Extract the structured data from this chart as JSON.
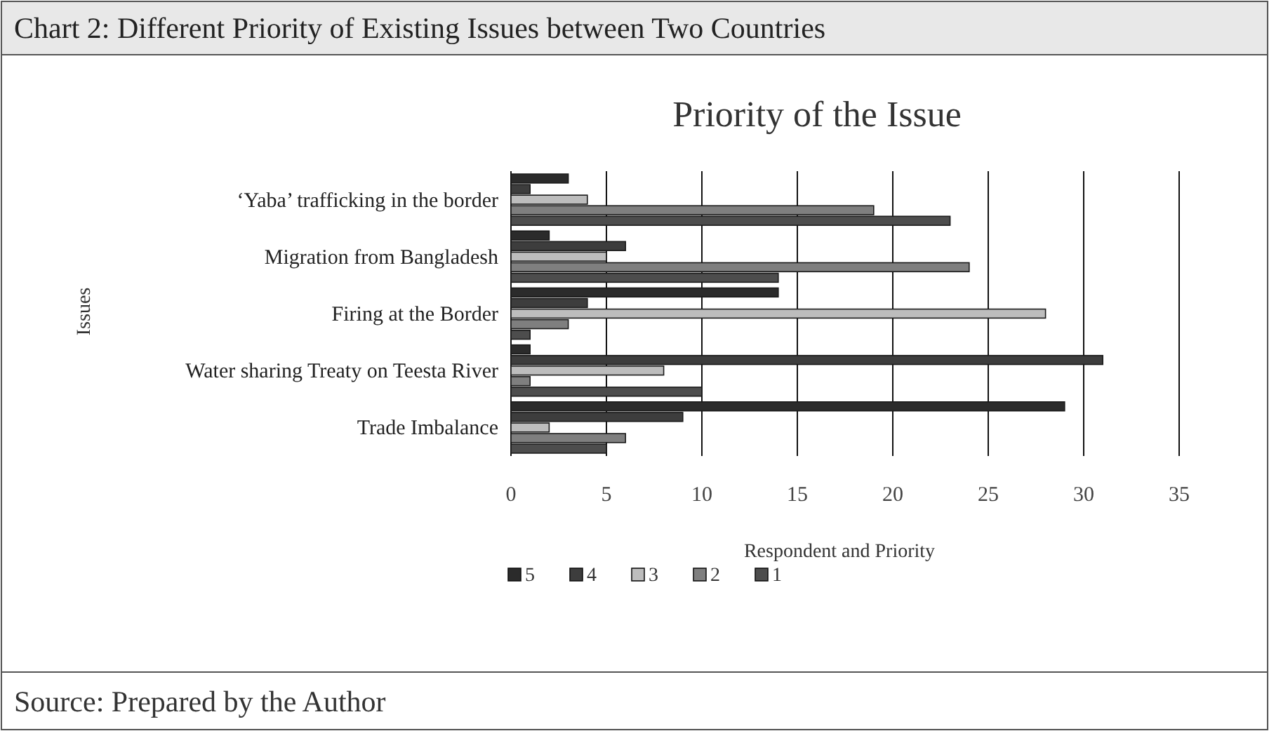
{
  "chart_data": {
    "type": "bar",
    "orientation": "horizontal",
    "title": "Chart 2: Different Priority of Existing Issues between Two Countries",
    "subtitle": "Priority of the Issue",
    "xlabel": "Respondent and Priority",
    "ylabel": "Issues",
    "categories": [
      "‘Yaba’ trafficking in the border",
      "Migration from Bangladesh",
      "Firing at the Border",
      "Water sharing Treaty on Teesta River",
      "Trade Imbalance"
    ],
    "series": [
      {
        "name": "5",
        "color": "#2b2b2b",
        "values": [
          3,
          2,
          14,
          1,
          29
        ]
      },
      {
        "name": "4",
        "color": "#3d3d3d",
        "values": [
          1,
          6,
          4,
          31,
          9
        ]
      },
      {
        "name": "3",
        "color": "#bdbdbd",
        "values": [
          4,
          5,
          28,
          8,
          2
        ]
      },
      {
        "name": "2",
        "color": "#7f7f7f",
        "values": [
          19,
          24,
          3,
          1,
          6
        ]
      },
      {
        "name": "1",
        "color": "#4d4d4d",
        "values": [
          23,
          14,
          1,
          10,
          5
        ]
      }
    ],
    "xlim": [
      0,
      35
    ],
    "xticks": [
      0,
      5,
      10,
      15,
      20,
      25,
      30,
      35
    ],
    "grid": "x",
    "legend": "bottom",
    "annotations": [
      "Source: Prepared by the Author"
    ]
  }
}
